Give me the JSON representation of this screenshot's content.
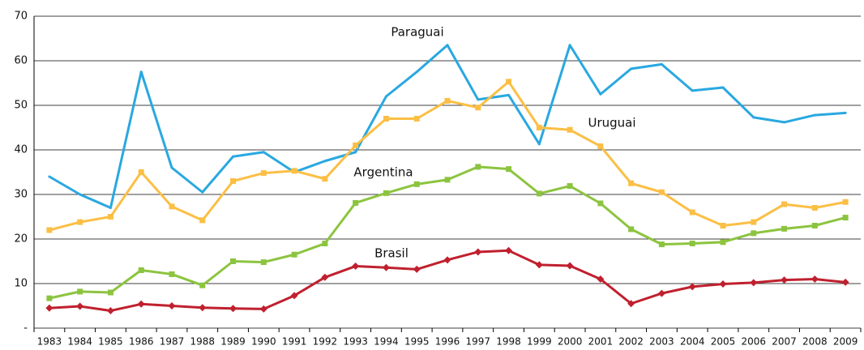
{
  "chart_data": {
    "type": "line",
    "x": [
      "1983",
      "1984",
      "1985",
      "1986",
      "1987",
      "1988",
      "1989",
      "1990",
      "1991",
      "1992",
      "1993",
      "1994",
      "1995",
      "1996",
      "1997",
      "1998",
      "1999",
      "2000",
      "2001",
      "2002",
      "2003",
      "2004",
      "2005",
      "2006",
      "2007",
      "2008",
      "2009"
    ],
    "series": [
      {
        "name": "Paraguai",
        "color": "#29a8e0",
        "marker": "none",
        "values": [
          34,
          30,
          27,
          57.5,
          36,
          30.5,
          38.5,
          39.5,
          35,
          37.5,
          39.5,
          52,
          57.5,
          63.5,
          51.3,
          52.3,
          41.3,
          63.5,
          52.5,
          58.2,
          59.2,
          53.3,
          54,
          47.3,
          46.2,
          47.8,
          48.3
        ]
      },
      {
        "name": "Uruguai",
        "color": "#fbbf45",
        "marker": "square",
        "values": [
          22,
          23.8,
          25,
          35,
          27.3,
          24.2,
          33,
          34.8,
          35.3,
          33.5,
          41,
          47,
          47,
          51,
          49.5,
          55.3,
          45,
          44.5,
          40.8,
          32.5,
          30.5,
          26,
          23,
          23.8,
          27.8,
          27,
          28.3
        ]
      },
      {
        "name": "Argentina",
        "color": "#8cc43f",
        "marker": "square",
        "values": [
          6.7,
          8.2,
          8,
          13,
          12.1,
          9.6,
          15,
          14.8,
          16.5,
          19,
          28.1,
          30.3,
          32.3,
          33.3,
          36.2,
          35.7,
          30.2,
          31.9,
          28,
          22.2,
          18.8,
          19,
          19.3,
          21.3,
          22.3,
          23,
          24.8
        ]
      },
      {
        "name": "Brasil",
        "color": "#c0202e",
        "marker": "diamond",
        "values": [
          4.5,
          4.9,
          3.9,
          5.4,
          5,
          4.6,
          4.4,
          4.3,
          7.3,
          11.4,
          13.9,
          13.6,
          13.2,
          15.3,
          17.1,
          17.4,
          14.2,
          14,
          11,
          5.5,
          7.8,
          9.3,
          9.9,
          10.2,
          10.8,
          11,
          10.3
        ]
      }
    ],
    "ylim": [
      0,
      70
    ],
    "yticks": [
      {
        "value": 0,
        "label": "-"
      },
      10,
      20,
      30,
      40,
      50,
      60,
      70
    ],
    "grid": true
  }
}
